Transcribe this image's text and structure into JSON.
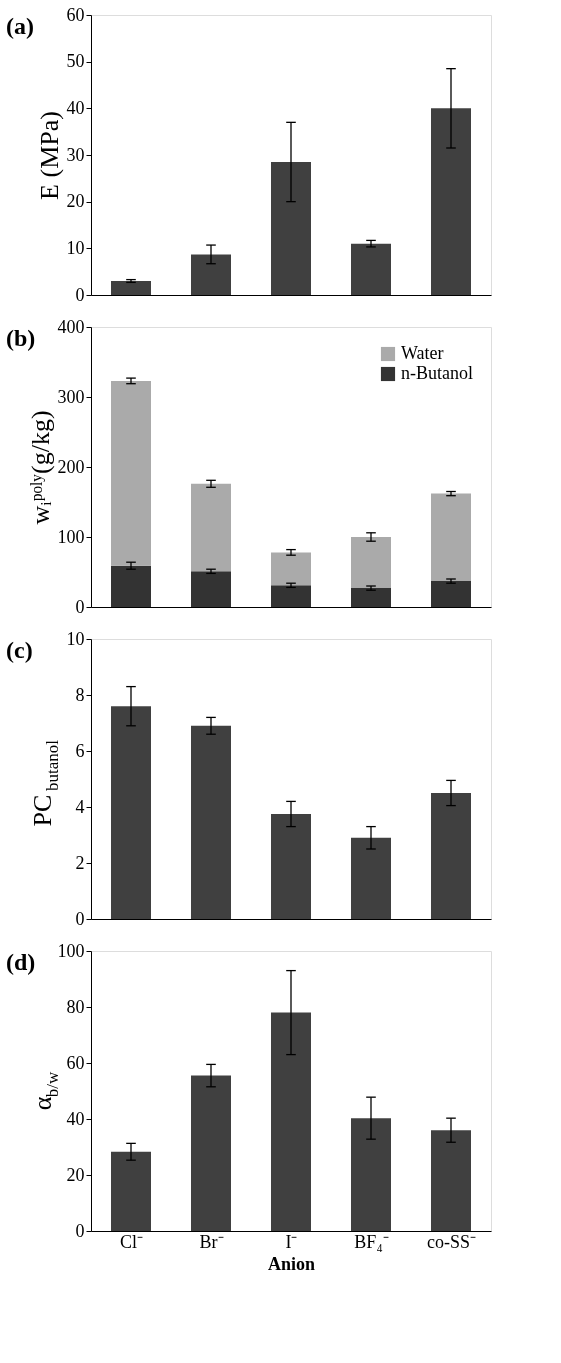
{
  "chart_data": [
    {
      "type": "bar",
      "annotations": [
        "(a)"
      ],
      "ylabel": "E (MPa)",
      "categories": [
        null,
        null,
        null,
        null,
        null
      ],
      "tick_labels": "y",
      "ylim": [
        0,
        60
      ],
      "yticks": [
        0,
        10,
        20,
        30,
        40,
        50,
        60
      ],
      "grid": false,
      "legend": false,
      "series": [
        {
          "color": "#404040",
          "values": [
            3,
            8.7,
            28.5,
            11,
            40
          ],
          "errors": [
            0.3,
            2,
            8.5,
            0.7,
            8.5
          ]
        }
      ]
    },
    {
      "type": "bar",
      "annotations": [
        "(b)"
      ],
      "ylabel": "wᵢᵖᵒˡʸ(g/kg)",
      "categories": [
        null,
        null,
        null,
        null,
        null
      ],
      "tick_labels": "y",
      "ylim": [
        0,
        400
      ],
      "yticks": [
        0,
        100,
        200,
        300,
        400
      ],
      "grid": false,
      "legend": "top right",
      "stacked": true,
      "series": [
        {
          "name": "n-Butanol",
          "color": "#333333",
          "values": [
            59,
            51,
            31,
            27,
            37
          ],
          "errors": [
            5,
            3,
            3,
            3,
            3
          ]
        },
        {
          "name": "Water",
          "color": "#aaaaaa",
          "values": [
            264,
            125,
            47,
            73,
            125
          ],
          "errors": [
            4,
            5,
            4,
            6,
            3
          ]
        }
      ]
    },
    {
      "type": "bar",
      "annotations": [
        "(c)"
      ],
      "ylabel": "PC$_{butanol}$",
      "categories": [
        null,
        null,
        null,
        null,
        null
      ],
      "tick_labels": "y",
      "ylim": [
        0,
        10
      ],
      "yticks": [
        0,
        2,
        4,
        6,
        8,
        10
      ],
      "grid": false,
      "legend": false,
      "series": [
        {
          "color": "#404040",
          "values": [
            7.6,
            6.9,
            3.75,
            2.9,
            4.5
          ],
          "errors": [
            0.7,
            0.3,
            0.45,
            0.4,
            0.45
          ]
        }
      ]
    },
    {
      "type": "bar",
      "annotations": [
        "(d)"
      ],
      "ylabel": "α$_{b/w}$",
      "xlabel": "Anion",
      "categories": [
        "Cl⁻",
        "Br⁻",
        "I⁻",
        "BF₄⁻",
        "co-SS⁻"
      ],
      "ylim": [
        0,
        100
      ],
      "yticks": [
        0,
        20,
        40,
        60,
        80,
        100
      ],
      "grid": false,
      "legend": false,
      "series": [
        {
          "color": "#404040",
          "values": [
            28.3,
            55.5,
            78,
            40.3,
            36
          ],
          "errors": [
            3,
            4,
            15,
            7.5,
            4.3
          ]
        }
      ]
    }
  ]
}
